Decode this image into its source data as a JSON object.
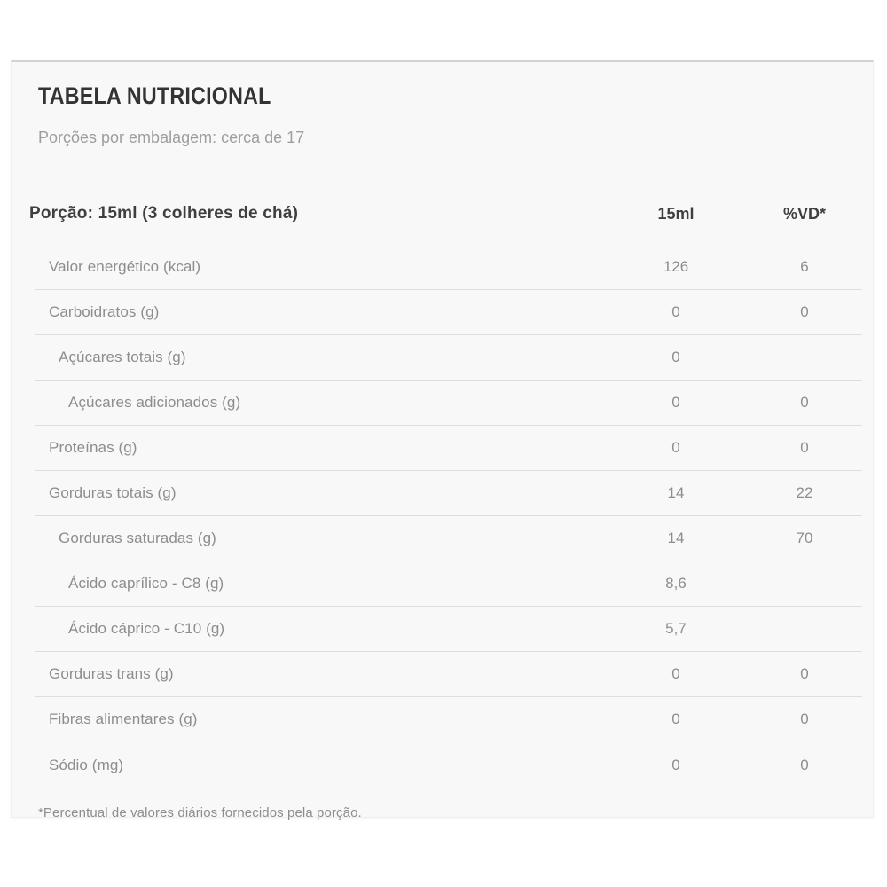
{
  "panel": {
    "title": "TABELA NUTRICIONAL",
    "servings_info": "Porções por embalagem: cerca de 17",
    "footnote": "*Percentual de valores diários fornecidos pela porção."
  },
  "table": {
    "header": {
      "label": "Porção: 15ml (3 colheres de chá)",
      "amount_col": "15ml",
      "vd_col": "%VD*"
    },
    "rows": [
      {
        "label": "Valor energético (kcal)",
        "indent": 0,
        "amount": "126",
        "vd": "6"
      },
      {
        "label": "Carboidratos (g)",
        "indent": 0,
        "amount": "0",
        "vd": "0"
      },
      {
        "label": "Açúcares totais (g)",
        "indent": 1,
        "amount": "0",
        "vd": ""
      },
      {
        "label": "Açúcares adicionados (g)",
        "indent": 2,
        "amount": "0",
        "vd": "0"
      },
      {
        "label": "Proteínas (g)",
        "indent": 0,
        "amount": "0",
        "vd": "0"
      },
      {
        "label": "Gorduras totais (g)",
        "indent": 0,
        "amount": "14",
        "vd": "22"
      },
      {
        "label": "Gorduras saturadas (g)",
        "indent": 1,
        "amount": "14",
        "vd": "70"
      },
      {
        "label": "Ácido caprílico - C8 (g)",
        "indent": 2,
        "amount": "8,6",
        "vd": ""
      },
      {
        "label": "Ácido cáprico - C10 (g)",
        "indent": 2,
        "amount": "5,7",
        "vd": ""
      },
      {
        "label": "Gorduras trans (g)",
        "indent": 0,
        "amount": "0",
        "vd": "0"
      },
      {
        "label": "Fibras alimentares (g)",
        "indent": 0,
        "amount": "0",
        "vd": "0"
      },
      {
        "label": "Sódio (mg)",
        "indent": 0,
        "amount": "0",
        "vd": "0"
      }
    ]
  },
  "colors": {
    "card_background": "#f8f8f8",
    "page_background": "#ffffff",
    "title_text": "#333333",
    "header_text": "#3f3f3f",
    "row_text": "#8d8d8d",
    "separator": "#dedede",
    "card_top_border": "#d2d2d2"
  }
}
